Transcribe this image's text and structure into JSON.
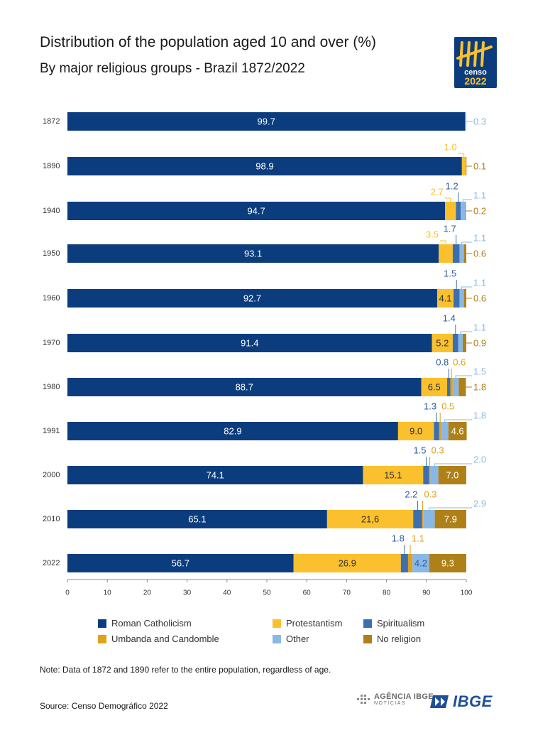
{
  "header": {
    "title": "Distribution of the population aged 10 and over (%)",
    "subtitle": "By major religious groups - Brazil 1872/2022"
  },
  "logo": {
    "line1": "censo",
    "line2": "2022"
  },
  "chart_data": {
    "type": "bar",
    "orientation": "horizontal",
    "stacked": true,
    "title": "Distribution of the population aged 10 and over (%)",
    "subtitle": "By major religious groups - Brazil 1872/2022",
    "xlim": [
      0,
      100
    ],
    "xticks": [
      "0",
      "10",
      "20",
      "30",
      "40",
      "50",
      "60",
      "70",
      "80",
      "90",
      "100"
    ],
    "grid": false,
    "legend_position": "bottom",
    "categories": [
      "1872",
      "1890",
      "1940",
      "1950",
      "1960",
      "1970",
      "1980",
      "1991",
      "2000",
      "2010",
      "2022"
    ],
    "series": [
      {
        "name": "Roman Catholicism",
        "color": "#0b3d7e",
        "values": [
          99.7,
          98.9,
          94.7,
          93.1,
          92.7,
          91.4,
          88.7,
          82.9,
          74.1,
          65.1,
          56.7
        ],
        "labels": [
          "99.7",
          "98.9",
          "94.7",
          "93.1",
          "92.7",
          "91.4",
          "88.7",
          "82.9",
          "74.1",
          "65.1",
          "56.7"
        ]
      },
      {
        "name": "Protestantism",
        "color": "#fbc02d",
        "values": [
          0,
          1.0,
          2.7,
          3.5,
          4.1,
          5.2,
          6.5,
          9.0,
          15.1,
          21.6,
          26.9
        ],
        "labels": [
          "",
          "1.0",
          "2.7",
          "3.5",
          "4.1",
          "5.2",
          "6.5",
          "9.0",
          "15.1",
          "21,6",
          "26.9"
        ]
      },
      {
        "name": "Spiritualism",
        "color": "#3b6fb0",
        "values": [
          0,
          0,
          1.2,
          1.7,
          1.5,
          1.4,
          0.8,
          1.3,
          1.5,
          2.2,
          1.8
        ],
        "labels": [
          "",
          "",
          "1.2",
          "1.7",
          "1.5",
          "1.4",
          "0.8",
          "1.3",
          "1.5",
          "2.2",
          "1.8"
        ]
      },
      {
        "name": "Umbanda and Candomble",
        "color": "#e0a11b",
        "values": [
          0,
          0,
          0,
          0,
          0,
          0,
          0.6,
          0.5,
          0.3,
          0.3,
          1.1
        ],
        "labels": [
          "",
          "",
          "",
          "",
          "",
          "",
          "0.6",
          "0.5",
          "0.3",
          "0.3",
          "1.1"
        ]
      },
      {
        "name": "Other",
        "color": "#8ab8e6",
        "values": [
          0.3,
          0,
          1.1,
          1.1,
          1.1,
          1.1,
          1.5,
          1.8,
          2.0,
          2.9,
          4.2
        ],
        "labels": [
          "0.3",
          "",
          "1.1",
          "1.1",
          "1.1",
          "1.1",
          "1.5",
          "1.8",
          "2.0",
          "2.9",
          "4.2"
        ]
      },
      {
        "name": "No religion",
        "color": "#b08018",
        "values": [
          0,
          0.1,
          0.2,
          0.6,
          0.6,
          0.9,
          1.8,
          4.6,
          7.0,
          7.9,
          9.3
        ],
        "labels": [
          "",
          "0.1",
          "0.2",
          "0.6",
          "0.6",
          "0.9",
          "1.8",
          "4.6",
          "7.0",
          "7.9",
          "9.3"
        ]
      }
    ]
  },
  "note": "Note: Data of 1872 and 1890 refer to the entire population, regardless of age.",
  "source": "Source: Censo Demográfico 2022",
  "footer": {
    "agencia_line1": "AGÊNCIA IBGE",
    "agencia_line2": "NOTÍCIAS",
    "ibge_wordmark": "IBGE"
  }
}
